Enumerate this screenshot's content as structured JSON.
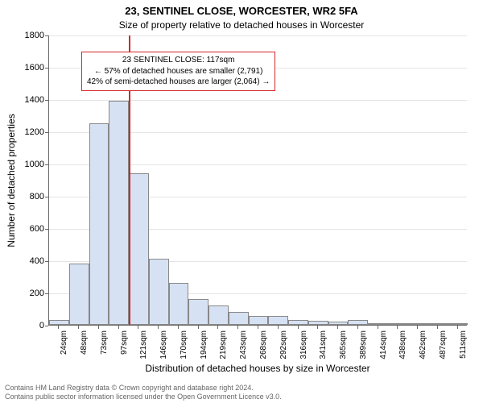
{
  "title_line1": "23, SENTINEL CLOSE, WORCESTER, WR2 5FA",
  "title_line2": "Size of property relative to detached houses in Worcester",
  "ylabel": "Number of detached properties",
  "xlabel": "Distribution of detached houses by size in Worcester",
  "footer_line1": "Contains HM Land Registry data © Crown copyright and database right 2024.",
  "footer_line2": "Contains public sector information licensed under the Open Government Licence v3.0.",
  "chart": {
    "type": "histogram",
    "ylim": [
      0,
      1800
    ],
    "ytick_step": 200,
    "background_color": "#ffffff",
    "grid_color": "#e5e5e5",
    "axis_color": "#666666",
    "bar_fill": "#d6e2f3",
    "bar_border": "#888888",
    "reference_line_color": "#d62728",
    "reference_x_index": 4,
    "categories": [
      "24sqm",
      "48sqm",
      "73sqm",
      "97sqm",
      "121sqm",
      "146sqm",
      "170sqm",
      "194sqm",
      "219sqm",
      "243sqm",
      "268sqm",
      "292sqm",
      "316sqm",
      "341sqm",
      "365sqm",
      "389sqm",
      "414sqm",
      "438sqm",
      "462sqm",
      "487sqm",
      "511sqm"
    ],
    "values": [
      30,
      380,
      1250,
      1390,
      940,
      410,
      260,
      160,
      120,
      80,
      55,
      55,
      30,
      25,
      20,
      30,
      10,
      5,
      5,
      5,
      5
    ]
  },
  "annotation": {
    "line1": "23 SENTINEL CLOSE: 117sqm",
    "line2": "← 57% of detached houses are smaller (2,791)",
    "line3": "42% of semi-detached houses are larger (2,064) →",
    "border_color": "#d62728",
    "background": "#ffffff"
  }
}
